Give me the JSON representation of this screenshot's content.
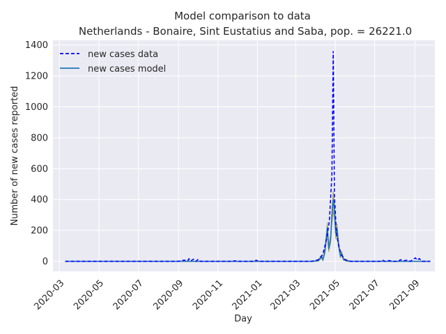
{
  "chart_data": {
    "type": "line",
    "title": "Model comparison to data",
    "subtitle": "Netherlands - Bonaire, Sint Eustatius and Saba, pop. = 26221.0",
    "xlabel": "Day",
    "ylabel": "Number of new cases reported",
    "xlim": [
      "2020-02-20",
      "2021-10-02"
    ],
    "ylim": [
      -65,
      1430
    ],
    "x_ticks": [
      "2020-03",
      "2020-05",
      "2020-07",
      "2020-09",
      "2020-11",
      "2021-01",
      "2021-03",
      "2021-05",
      "2021-07",
      "2021-09"
    ],
    "y_ticks": [
      0,
      200,
      400,
      600,
      800,
      1000,
      1200,
      1400
    ],
    "grid": true,
    "legend_position": "top-left",
    "colors": {
      "background": "#eaeaf2",
      "grid": "#ffffff",
      "data_line": "#0000ff",
      "model_line": "#1f77b4",
      "model_band": "#8c8c3c"
    },
    "series": [
      {
        "name": "new cases data",
        "style": "dashed",
        "points": [
          [
            "2020-03-10",
            0
          ],
          [
            "2020-08-31",
            0
          ],
          [
            "2020-09-10",
            8
          ],
          [
            "2020-09-15",
            3
          ],
          [
            "2020-09-17",
            16
          ],
          [
            "2020-09-20",
            2
          ],
          [
            "2020-09-24",
            14
          ],
          [
            "2020-09-28",
            0
          ],
          [
            "2020-10-01",
            12
          ],
          [
            "2020-10-05",
            0
          ],
          [
            "2020-11-24",
            0
          ],
          [
            "2020-11-27",
            4
          ],
          [
            "2020-11-30",
            0
          ],
          [
            "2020-12-27",
            0
          ],
          [
            "2020-12-30",
            7
          ],
          [
            "2021-01-03",
            0
          ],
          [
            "2021-03-25",
            0
          ],
          [
            "2021-04-05",
            10
          ],
          [
            "2021-04-12",
            45
          ],
          [
            "2021-04-18",
            150
          ],
          [
            "2021-04-22",
            260
          ],
          [
            "2021-04-26",
            560
          ],
          [
            "2021-04-28",
            1360
          ],
          [
            "2021-04-30",
            420
          ],
          [
            "2021-05-03",
            180
          ],
          [
            "2021-05-07",
            90
          ],
          [
            "2021-05-11",
            40
          ],
          [
            "2021-05-16",
            12
          ],
          [
            "2021-05-22",
            0
          ],
          [
            "2021-07-09",
            0
          ],
          [
            "2021-07-13",
            8
          ],
          [
            "2021-07-17",
            0
          ],
          [
            "2021-07-24",
            5
          ],
          [
            "2021-07-28",
            0
          ],
          [
            "2021-08-06",
            0
          ],
          [
            "2021-08-10",
            10
          ],
          [
            "2021-08-14",
            3
          ],
          [
            "2021-08-20",
            7
          ],
          [
            "2021-08-25",
            0
          ],
          [
            "2021-08-30",
            14
          ],
          [
            "2021-09-02",
            22
          ],
          [
            "2021-09-05",
            8
          ],
          [
            "2021-09-08",
            18
          ],
          [
            "2021-09-12",
            0
          ],
          [
            "2021-09-25",
            0
          ]
        ]
      },
      {
        "name": "new cases model",
        "style": "solid",
        "points": [
          [
            "2020-03-10",
            0
          ],
          [
            "2021-03-28",
            0
          ],
          [
            "2021-04-05",
            5
          ],
          [
            "2021-04-10",
            30
          ],
          [
            "2021-04-12",
            10
          ],
          [
            "2021-04-15",
            60
          ],
          [
            "2021-04-19",
            220
          ],
          [
            "2021-04-21",
            80
          ],
          [
            "2021-04-24",
            150
          ],
          [
            "2021-04-26",
            300
          ],
          [
            "2021-04-28",
            400
          ],
          [
            "2021-04-30",
            330
          ],
          [
            "2021-05-02",
            180
          ],
          [
            "2021-05-04",
            210
          ],
          [
            "2021-05-06",
            120
          ],
          [
            "2021-05-09",
            35
          ],
          [
            "2021-05-11",
            50
          ],
          [
            "2021-05-14",
            12
          ],
          [
            "2021-05-20",
            2
          ],
          [
            "2021-05-26",
            0
          ],
          [
            "2021-09-25",
            0
          ]
        ]
      }
    ]
  }
}
